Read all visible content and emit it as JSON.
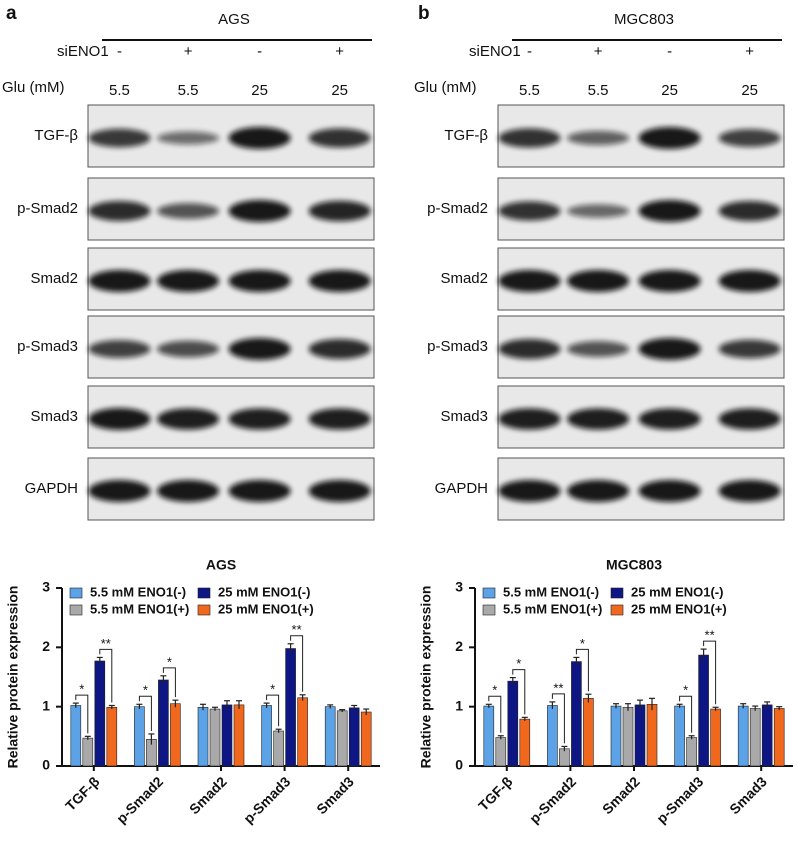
{
  "figure": {
    "panels": [
      {
        "label": "a",
        "cell_line": "AGS",
        "rows": [
          {
            "label": "siENO1",
            "lanes": [
              "-",
              "+",
              "-",
              "+"
            ]
          },
          {
            "label": "Glu (mM)",
            "lanes": [
              "5.5",
              "5.5",
              "25",
              "25"
            ]
          }
        ],
        "blots": [
          "TGF-β",
          "p-Smad2",
          "Smad2",
          "p-Smad3",
          "Smad3",
          "GAPDH"
        ]
      },
      {
        "label": "b",
        "cell_line": "MGC803",
        "rows": [
          {
            "label": "siENO1",
            "lanes": [
              "-",
              "+",
              "-",
              "+"
            ]
          },
          {
            "label": "Glu (mM)",
            "lanes": [
              "5.5",
              "5.5",
              "25",
              "25"
            ]
          }
        ],
        "blots": [
          "TGF-β",
          "p-Smad2",
          "Smad2",
          "p-Smad3",
          "Smad3",
          "GAPDH"
        ]
      }
    ]
  },
  "chart_data": [
    {
      "type": "bar",
      "title": "AGS",
      "y_label": "Relative protein expression",
      "categories": [
        "TGF-β",
        "p-Smad2",
        "Smad2",
        "p-Smad3",
        "Smad3"
      ],
      "series": [
        {
          "name": "5.5 mM ENO1(-)",
          "color": "#5ba3e6",
          "values": [
            1.02,
            1.0,
            0.99,
            1.02,
            1.0
          ],
          "errors": [
            0.04,
            0.04,
            0.05,
            0.04,
            0.03
          ]
        },
        {
          "name": "5.5 mM ENO1(+)",
          "color": "#a9a9a9",
          "values": [
            0.47,
            0.45,
            0.96,
            0.59,
            0.93
          ],
          "errors": [
            0.03,
            0.09,
            0.03,
            0.03,
            0.02
          ]
        },
        {
          "name": "25 mM ENO1(-)",
          "color": "#0d1683",
          "values": [
            1.77,
            1.45,
            1.03,
            1.98,
            0.98
          ],
          "errors": [
            0.06,
            0.07,
            0.07,
            0.08,
            0.04
          ]
        },
        {
          "name": "25 mM ENO1(+)",
          "color": "#f0681e",
          "values": [
            0.99,
            1.05,
            1.03,
            1.15,
            0.91
          ],
          "errors": [
            0.03,
            0.06,
            0.07,
            0.05,
            0.05
          ]
        }
      ],
      "ylim": [
        0,
        3
      ],
      "yticks": [
        0,
        1,
        2,
        3
      ],
      "legend": "top",
      "annotations": [
        {
          "text": "*",
          "category": "TGF-β",
          "pair": [
            "5.5 mM ENO1(-)",
            "5.5 mM ENO1(+)"
          ]
        },
        {
          "text": "**",
          "category": "TGF-β",
          "pair": [
            "25 mM ENO1(-)",
            "25 mM ENO1(+)"
          ]
        },
        {
          "text": "*",
          "category": "p-Smad2",
          "pair": [
            "5.5 mM ENO1(-)",
            "5.5 mM ENO1(+)"
          ]
        },
        {
          "text": "*",
          "category": "p-Smad2",
          "pair": [
            "25 mM ENO1(-)",
            "25 mM ENO1(+)"
          ]
        },
        {
          "text": "*",
          "category": "p-Smad3",
          "pair": [
            "5.5 mM ENO1(-)",
            "5.5 mM ENO1(+)"
          ]
        },
        {
          "text": "**",
          "category": "p-Smad3",
          "pair": [
            "25 mM ENO1(-)",
            "25 mM ENO1(+)"
          ]
        }
      ]
    },
    {
      "type": "bar",
      "title": "MGC803",
      "y_label": "Relative protein expression",
      "categories": [
        "TGF-β",
        "p-Smad2",
        "Smad2",
        "p-Smad3",
        "Smad3"
      ],
      "series": [
        {
          "name": "5.5 mM ENO1(-)",
          "color": "#5ba3e6",
          "values": [
            1.01,
            1.02,
            1.01,
            1.01,
            1.01
          ],
          "errors": [
            0.03,
            0.06,
            0.04,
            0.03,
            0.04
          ]
        },
        {
          "name": "5.5 mM ENO1(+)",
          "color": "#a9a9a9",
          "values": [
            0.48,
            0.29,
            0.99,
            0.48,
            0.97
          ],
          "errors": [
            0.03,
            0.04,
            0.06,
            0.03,
            0.04
          ]
        },
        {
          "name": "25 mM ENO1(-)",
          "color": "#0d1683",
          "values": [
            1.43,
            1.76,
            1.03,
            1.87,
            1.03
          ],
          "errors": [
            0.06,
            0.07,
            0.08,
            0.1,
            0.05
          ]
        },
        {
          "name": "25 mM ENO1(+)",
          "color": "#f0681e",
          "values": [
            0.79,
            1.14,
            1.04,
            0.96,
            0.97
          ],
          "errors": [
            0.03,
            0.07,
            0.1,
            0.03,
            0.03
          ]
        }
      ],
      "ylim": [
        0,
        3
      ],
      "yticks": [
        0,
        1,
        2,
        3
      ],
      "legend": "top",
      "annotations": [
        {
          "text": "*",
          "category": "TGF-β",
          "pair": [
            "5.5 mM ENO1(-)",
            "5.5 mM ENO1(+)"
          ]
        },
        {
          "text": "*",
          "category": "TGF-β",
          "pair": [
            "25 mM ENO1(-)",
            "25 mM ENO1(+)"
          ]
        },
        {
          "text": "**",
          "category": "p-Smad2",
          "pair": [
            "5.5 mM ENO1(-)",
            "5.5 mM ENO1(+)"
          ]
        },
        {
          "text": "*",
          "category": "p-Smad2",
          "pair": [
            "25 mM ENO1(-)",
            "25 mM ENO1(+)"
          ]
        },
        {
          "text": "*",
          "category": "p-Smad3",
          "pair": [
            "5.5 mM ENO1(-)",
            "5.5 mM ENO1(+)"
          ]
        },
        {
          "text": "**",
          "category": "p-Smad3",
          "pair": [
            "25 mM ENO1(-)",
            "25 mM ENO1(+)"
          ]
        }
      ]
    }
  ]
}
